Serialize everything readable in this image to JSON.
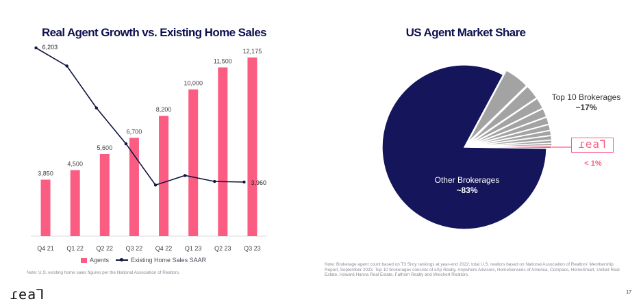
{
  "left_chart": {
    "title": "Real Agent Growth vs. Existing Home Sales",
    "note": "Note: U.S. existing home sales figures per the National Association of Realtors.",
    "legend": {
      "bars": "Agents",
      "line": "Existing Home Sales SAAR"
    }
  },
  "right_chart": {
    "title": "US Agent Market Share",
    "note": "Note: Brokerage agent count based on T3 Sixty rankings at year-end 2022; total U.S. realtors based on National Association of Realtors' Membership Report, September 2023. Top 10 brokerages consists of eXp Realty, Anywhere Advisors, HomeServices of America, Compass, HomeSmart, United Real Estate, Howard Hanna Real Estate, Fathom Realty and Weichert Realtors.",
    "top10_label": "Top 10 Brokerages",
    "top10_value": "~17%",
    "other_label": "Other Brokerages",
    "other_value": "~83%",
    "real_logo": "ɾeaꓶ",
    "real_value": "< 1%"
  },
  "footer": {
    "logo": "ɾeaꓶ",
    "page_number": "17"
  },
  "colors": {
    "agents": "#fb5d82",
    "line": "#10143f",
    "other": "#14155a",
    "top10": "#a3a3a3",
    "real": "#fb5d82"
  },
  "chart_data": [
    {
      "type": "bar",
      "categories": [
        "Q4 21",
        "Q1 22",
        "Q2 22",
        "Q3 22",
        "Q4 22",
        "Q1 23",
        "Q2 23",
        "Q3 23"
      ],
      "series": [
        {
          "name": "Agents",
          "type": "bar",
          "values": [
            3850,
            4500,
            5600,
            6700,
            8200,
            10000,
            11500,
            12175
          ],
          "labels": [
            "3,850",
            "4,500",
            "5,600",
            "6,700",
            "8,200",
            "10,000",
            "11,500",
            "12,175"
          ]
        },
        {
          "name": "Existing Home Sales SAAR",
          "type": "line",
          "values": [
            6203,
            5900,
            5200,
            4600,
            3910,
            4070,
            3970,
            3960
          ],
          "labels": [
            "6,203",
            "",
            "",
            "",
            "",
            "",
            "",
            "3,960"
          ]
        }
      ]
    },
    {
      "type": "pie",
      "slices": [
        {
          "name": "Other Brokerages",
          "value": 83
        },
        {
          "name": "Top 10 Brokerages",
          "value": 17
        },
        {
          "name": "real",
          "value": 0.5
        }
      ],
      "top10_segments": [
        5.2,
        3.0,
        2.3,
        1.8,
        1.5,
        1.2,
        1.0,
        0.9,
        0.6,
        0.5
      ]
    }
  ]
}
